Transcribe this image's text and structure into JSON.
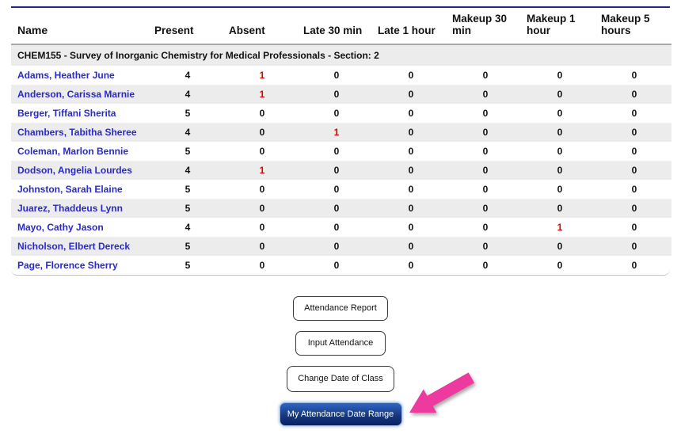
{
  "table": {
    "columns": [
      "Name",
      "Present",
      "Absent",
      "Late 30 min",
      "Late 1 hour",
      "Makeup 30 min",
      "Makeup 1 hour",
      "Makeup 5 hours"
    ],
    "section_header": "CHEM155 - Survey of Inorganic Chemistry for Medical Professionals - Section: 2",
    "rows": [
      {
        "name": "Adams, Heather June",
        "values": [
          4,
          1,
          0,
          0,
          0,
          0,
          0
        ]
      },
      {
        "name": "Anderson, Carissa Marnie",
        "values": [
          4,
          1,
          0,
          0,
          0,
          0,
          0
        ]
      },
      {
        "name": "Berger, Tiffani Sherita",
        "values": [
          5,
          0,
          0,
          0,
          0,
          0,
          0
        ]
      },
      {
        "name": "Chambers, Tabitha Sheree",
        "values": [
          4,
          0,
          1,
          0,
          0,
          0,
          0
        ]
      },
      {
        "name": "Coleman, Marlon Bennie",
        "values": [
          5,
          0,
          0,
          0,
          0,
          0,
          0
        ]
      },
      {
        "name": "Dodson, Angelia Lourdes",
        "values": [
          4,
          1,
          0,
          0,
          0,
          0,
          0
        ]
      },
      {
        "name": "Johnston, Sarah Elaine",
        "values": [
          5,
          0,
          0,
          0,
          0,
          0,
          0
        ]
      },
      {
        "name": "Juarez, Thaddeus Lynn",
        "values": [
          5,
          0,
          0,
          0,
          0,
          0,
          0
        ]
      },
      {
        "name": "Mayo, Cathy Jason",
        "values": [
          4,
          0,
          0,
          0,
          0,
          1,
          0
        ]
      },
      {
        "name": "Nicholson, Elbert Dereck",
        "values": [
          5,
          0,
          0,
          0,
          0,
          0,
          0
        ]
      },
      {
        "name": "Page, Florence Sherry",
        "values": [
          5,
          0,
          0,
          0,
          0,
          0,
          0
        ]
      }
    ]
  },
  "buttons": [
    {
      "label": "Attendance Report"
    },
    {
      "label": "Input Attendance"
    },
    {
      "label": "Change Date of Class"
    },
    {
      "label": "My Attendance Date Range"
    }
  ],
  "annotation": {
    "arrow_shape": "arrow-pointing-down-left",
    "arrow_target": "My Attendance Date Range"
  },
  "colors": {
    "top_rule": "#26238c",
    "header_divider": "#a9a9a9",
    "stripe_gray": "#ececec",
    "name_link_blue": "#2929cc",
    "value_black": "#111111",
    "value_red": "#e00000",
    "primary_button_top": "#2f66c6",
    "primary_button_bottom": "#0a2161",
    "primary_button_glow": "#aec8ef",
    "arrow_pink": "#ee3a9e"
  }
}
